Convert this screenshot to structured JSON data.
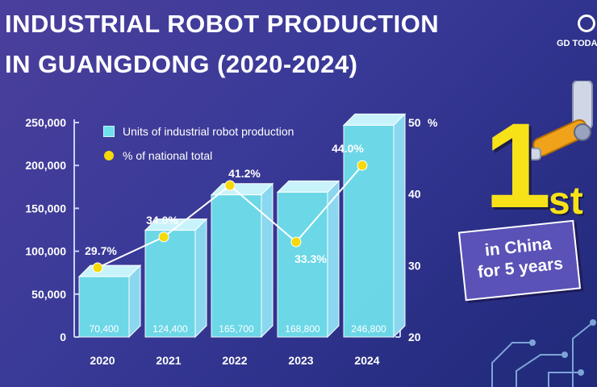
{
  "title": {
    "line1": "INDUSTRIAL ROBOT PRODUCTION",
    "line2": "IN GUANGDONG (2020-2024)"
  },
  "logo": {
    "text": "GD TODA",
    "icon": "gd-today-logo-icon"
  },
  "legend": {
    "bars": "Units of industrial robot production",
    "dots": "% of national total"
  },
  "badge": {
    "number": "1",
    "suffix": "st",
    "text": "in China\nfor 5 years"
  },
  "colors": {
    "bar_front": "#6fe0ec",
    "bar_side": "#8ad7ef",
    "bar_top": "#c9f3fb",
    "dot": "#f5d90a",
    "line": "#ffffff",
    "badge_yellow": "#f7e21a"
  },
  "chart_data": {
    "type": "bar",
    "categories": [
      "2020",
      "2021",
      "2022",
      "2023",
      "2024"
    ],
    "series": [
      {
        "name": "Units of industrial robot production",
        "values": [
          70400,
          124400,
          165700,
          168800,
          246800
        ],
        "labels": [
          "70,400",
          "124,400",
          "165,700",
          "168,800",
          "246,800"
        ],
        "axis": "left"
      },
      {
        "name": "% of national total",
        "type": "line",
        "values": [
          29.7,
          34.0,
          41.2,
          33.3,
          44.0
        ],
        "labels": [
          "29.7%",
          "34.0%",
          "41.2%",
          "33.3%",
          "44.0%"
        ],
        "axis": "right"
      }
    ],
    "y_left": {
      "ticks": [
        0,
        50000,
        100000,
        150000,
        200000,
        250000
      ],
      "tick_labels": [
        "0",
        "50,000",
        "100,000",
        "150,000",
        "200,000",
        "250,000"
      ],
      "ylim": [
        0,
        250000
      ]
    },
    "y_right": {
      "ticks": [
        20,
        30,
        40,
        50
      ],
      "tick_labels": [
        "20",
        "30",
        "40",
        "50"
      ],
      "unit": "%",
      "ylim": [
        20,
        50
      ]
    },
    "legend_position": "top-left",
    "grid": false
  }
}
